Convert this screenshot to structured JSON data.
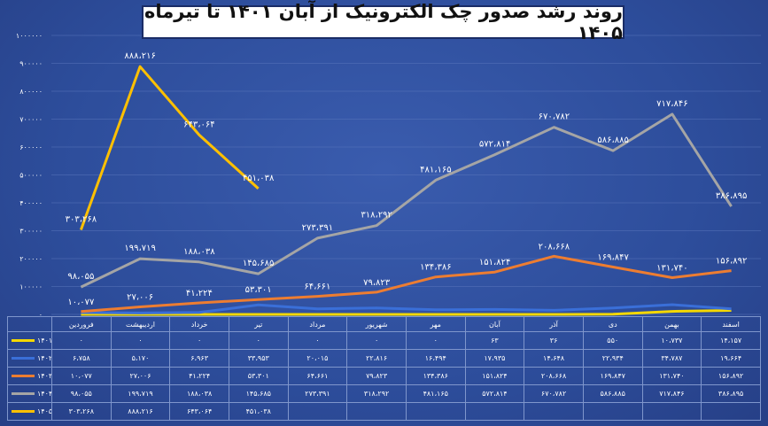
{
  "title": "روند رشد صدور چک الکترونیک از آبان ۱۴۰۱ تا تیرماه ۱۴۰۵",
  "chart_data": {
    "type": "line",
    "title": "روند رشد صدور چک الکترونیک از آبان ۱۴۰۱ تا تیرماه ۱۴۰۵",
    "categories": [
      "فروردین",
      "اردیبهشت",
      "خرداد",
      "تیر",
      "مرداد",
      "شهریور",
      "مهر",
      "آبان",
      "آذر",
      "دی",
      "بهمن",
      "اسفند"
    ],
    "ylim": [
      0,
      1000000
    ],
    "y_ticks": [
      "۰",
      "۱۰۰۰۰۰",
      "۲۰۰۰۰۰",
      "۳۰۰۰۰۰",
      "۴۰۰۰۰۰",
      "۵۰۰۰۰۰",
      "۶۰۰۰۰۰",
      "۷۰۰۰۰۰",
      "۸۰۰۰۰۰",
      "۹۰۰۰۰۰",
      "۱۰۰۰۰۰۰"
    ],
    "y_tick_values": [
      0,
      100000,
      200000,
      300000,
      400000,
      500000,
      600000,
      700000,
      800000,
      900000,
      1000000
    ],
    "grid": true,
    "legend_placement": "table-left",
    "series": [
      {
        "name": "۱۴۰۱",
        "color": "#f5d800",
        "values": [
          0,
          0,
          0,
          0,
          0,
          0,
          0,
          63,
          36,
          550,
          10737,
          14157
        ],
        "table": [
          "۰",
          "۰",
          "۰",
          "۰",
          "۰",
          "۰",
          "۰",
          "۶۳",
          "۳۶",
          "۵۵۰",
          "۱۰،۷۳۷",
          "۱۴،۱۵۷"
        ],
        "labels_on_chart": []
      },
      {
        "name": "۱۴۰۲",
        "color": "#3a6fd8",
        "values": [
          6758,
          5170,
          6963,
          33953,
          20015,
          22816,
          16494,
          17935,
          14648,
          22934,
          34787,
          19664
        ],
        "table": [
          "۶،۷۵۸",
          "۵،۱۷۰",
          "۶،۹۶۳",
          "۳۳،۹۵۳",
          "۲۰،۰۱۵",
          "۲۲،۸۱۶",
          "۱۶،۴۹۴",
          "۱۷،۹۳۵",
          "۱۴،۶۴۸",
          "۲۲،۹۳۴",
          "۳۴،۷۸۷",
          "۱۹،۶۶۴"
        ],
        "labels_on_chart": []
      },
      {
        "name": "۱۴۰۳",
        "color": "#ed7d31",
        "values": [
          10077,
          27006,
          41224,
          53301,
          64661,
          79823,
          134386,
          151824,
          208668,
          169847,
          131740,
          156892
        ],
        "table": [
          "۱۰،۰۷۷",
          "۲۷،۰۰۶",
          "۴۱،۲۲۴",
          "۵۳،۳۰۱",
          "۶۴،۶۶۱",
          "۷۹،۸۲۳",
          "۱۳۴،۳۸۶",
          "۱۵۱،۸۲۴",
          "۲۰۸،۶۶۸",
          "۱۶۹،۸۴۷",
          "۱۳۱،۷۴۰",
          "۱۵۶،۸۹۲"
        ],
        "labels_on_chart": [
          "۱۰،۰۷۷",
          "۲۷،۰۰۶",
          "۴۱،۲۲۴",
          "۵۳،۳۰۱",
          "۶۴،۶۶۱",
          "۷۹،۸۲۳",
          "۱۳۴،۳۸۶",
          "۱۵۱،۸۲۴",
          "۲۰۸،۶۶۸",
          "۱۶۹،۸۴۷",
          "۱۳۱،۷۴۰",
          "۱۵۶،۸۹۲"
        ]
      },
      {
        "name": "۱۴۰۴",
        "color": "#a5a5a5",
        "values": [
          98055,
          199719,
          188038,
          145685,
          273391,
          318292,
          481165,
          572814,
          670782,
          586885,
          717846,
          386895
        ],
        "table": [
          "۹۸،۰۵۵",
          "۱۹۹،۷۱۹",
          "۱۸۸،۰۳۸",
          "۱۴۵،۶۸۵",
          "۲۷۳،۳۹۱",
          "۳۱۸،۲۹۲",
          "۴۸۱،۱۶۵",
          "۵۷۲،۸۱۴",
          "۶۷۰،۷۸۲",
          "۵۸۶،۸۸۵",
          "۷۱۷،۸۴۶",
          "۳۸۶،۸۹۵"
        ],
        "labels_on_chart": [
          "۹۸،۰۵۵",
          "۱۹۹،۷۱۹",
          "۱۸۸،۰۳۸",
          "۱۴۵،۶۸۵",
          "۲۷۳،۳۹۱",
          "۳۱۸،۲۹۲",
          "۴۸۱،۱۶۵",
          "۵۷۲،۸۱۴",
          "۶۷۰،۷۸۲",
          "۵۸۶،۸۸۵",
          "۷۱۷،۸۴۶",
          "۳۸۶،۸۹۵"
        ]
      },
      {
        "name": "۱۴۰۵",
        "color": "#ffc000",
        "values": [
          303268,
          888216,
          643064,
          451038,
          null,
          null,
          null,
          null,
          null,
          null,
          null,
          null
        ],
        "table": [
          "۳۰۳،۲۶۸",
          "۸۸۸،۲۱۶",
          "۶۴۳،۰۶۴",
          "۴۵۱،۰۳۸",
          "",
          "",
          "",
          "",
          "",
          "",
          "",
          ""
        ],
        "labels_on_chart": [
          "۳۰۳،۲۶۸",
          "۸۸۸،۲۱۶",
          "۶۴۳،۰۶۴",
          "۴۵۱،۰۳۸"
        ]
      }
    ]
  }
}
